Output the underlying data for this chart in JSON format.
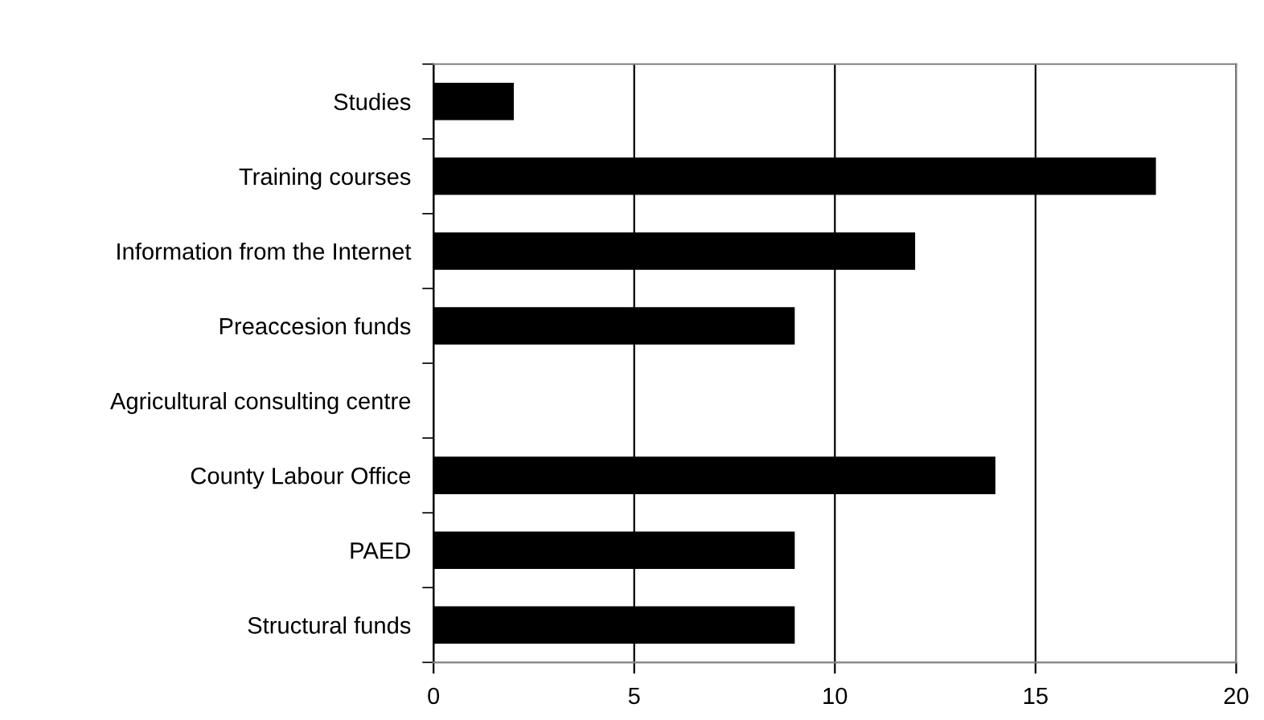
{
  "chart_data": {
    "type": "bar",
    "orientation": "horizontal",
    "categories": [
      "Studies",
      "Training courses",
      "Information from the Internet",
      "Preaccesion funds",
      "Agricultural consulting centre",
      "County Labour Office",
      "PAED",
      "Structural funds"
    ],
    "values": [
      2,
      18,
      12,
      9,
      0,
      14,
      9,
      9
    ],
    "color": "#000000",
    "xlim": [
      0,
      20
    ],
    "xticks": [
      0,
      5,
      10,
      15,
      20
    ],
    "grid": "x",
    "legend": false
  }
}
